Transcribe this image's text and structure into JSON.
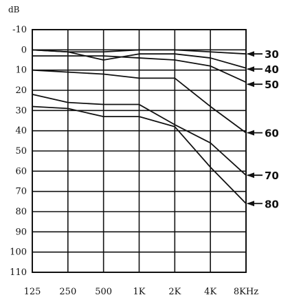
{
  "chart_data": {
    "type": "line",
    "ylabel": "dB",
    "ylim": [
      -10,
      110
    ],
    "y_inverted": true,
    "grid": true,
    "categories": [
      "125",
      "250",
      "500",
      "1K",
      "2K",
      "4K",
      "8KHz"
    ],
    "y_ticks": [
      "-10",
      "0",
      "10",
      "20",
      "30",
      "40",
      "50",
      "60",
      "70",
      "80",
      "90",
      "100",
      "110"
    ],
    "series": [
      {
        "name": "30",
        "values": [
          0,
          1,
          1,
          0,
          0,
          1,
          2
        ]
      },
      {
        "name": "40",
        "values": [
          0,
          1,
          5,
          2,
          2,
          4,
          9
        ]
      },
      {
        "name": "50",
        "values": [
          3,
          3,
          3,
          4,
          5,
          8,
          16
        ]
      },
      {
        "name": "60",
        "values": [
          10,
          11,
          12,
          14,
          14,
          28,
          41
        ]
      },
      {
        "name": "70",
        "values": [
          22,
          26,
          27,
          27,
          37,
          46,
          62
        ]
      },
      {
        "name": "80",
        "values": [
          28,
          29,
          33,
          33,
          38,
          58,
          76
        ]
      }
    ]
  }
}
